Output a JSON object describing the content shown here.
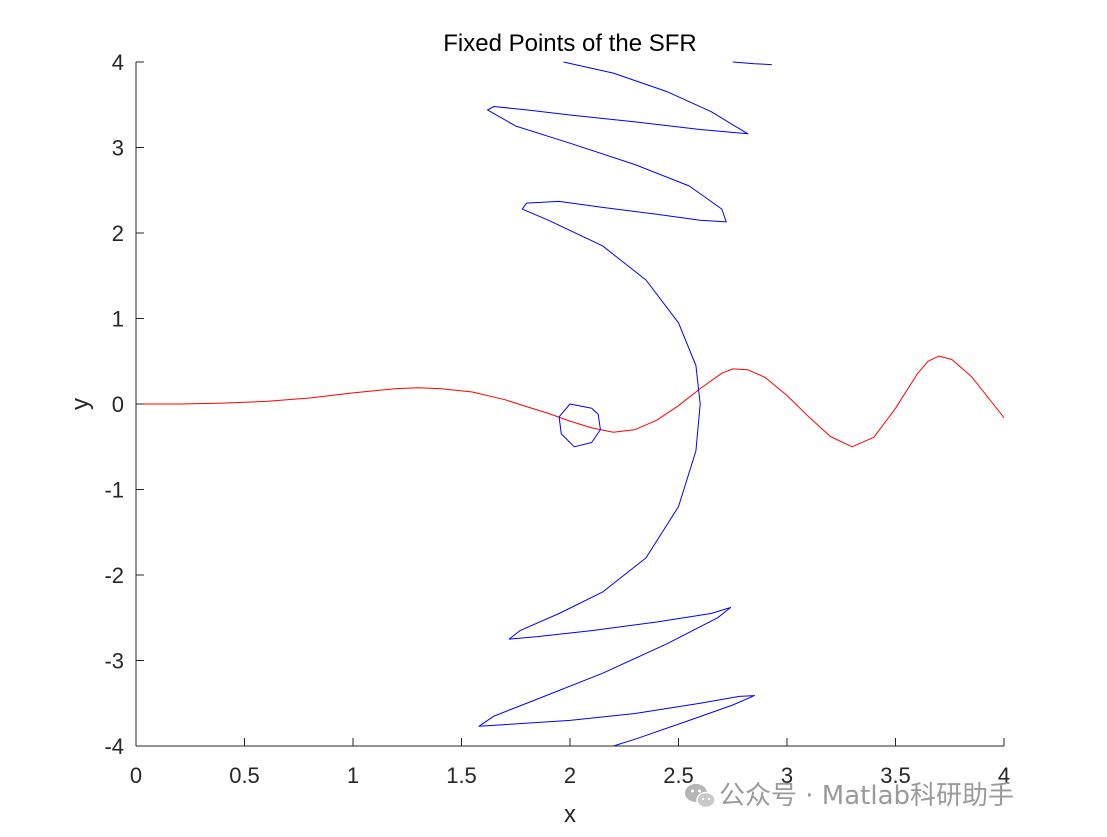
{
  "chart_data": {
    "type": "line",
    "title": "Fixed Points of the SFR",
    "xlabel": "x",
    "ylabel": "y",
    "xlim": [
      0,
      4
    ],
    "ylim": [
      -4,
      4
    ],
    "xticks": [
      "0",
      "0.5",
      "1",
      "1.5",
      "2",
      "2.5",
      "3",
      "3.5",
      "4"
    ],
    "yticks": [
      "-4",
      "-3",
      "-2",
      "-1",
      "0",
      "1",
      "2",
      "3",
      "4"
    ],
    "grid": false,
    "box": false,
    "series": [
      {
        "color": "#ff0000",
        "points": [
          [
            0.0,
            0.0
          ],
          [
            0.2,
            0.0
          ],
          [
            0.4,
            0.01
          ],
          [
            0.6,
            0.03
          ],
          [
            0.8,
            0.07
          ],
          [
            1.0,
            0.13
          ],
          [
            1.2,
            0.18
          ],
          [
            1.3,
            0.19
          ],
          [
            1.4,
            0.18
          ],
          [
            1.55,
            0.14
          ],
          [
            1.7,
            0.05
          ],
          [
            1.8,
            -0.03
          ],
          [
            1.9,
            -0.11
          ],
          [
            2.0,
            -0.2
          ],
          [
            2.1,
            -0.28
          ],
          [
            2.2,
            -0.33
          ],
          [
            2.3,
            -0.3
          ],
          [
            2.4,
            -0.19
          ],
          [
            2.5,
            -0.02
          ],
          [
            2.6,
            0.18
          ],
          [
            2.7,
            0.36
          ],
          [
            2.75,
            0.41
          ],
          [
            2.82,
            0.4
          ],
          [
            2.9,
            0.31
          ],
          [
            3.0,
            0.1
          ],
          [
            3.1,
            -0.15
          ],
          [
            3.2,
            -0.38
          ],
          [
            3.3,
            -0.5
          ],
          [
            3.4,
            -0.39
          ],
          [
            3.5,
            -0.05
          ],
          [
            3.6,
            0.35
          ],
          [
            3.65,
            0.5
          ],
          [
            3.7,
            0.56
          ],
          [
            3.76,
            0.52
          ],
          [
            3.85,
            0.32
          ],
          [
            3.95,
            0.0
          ],
          [
            4.0,
            -0.16
          ]
        ]
      },
      {
        "color": "#0000ff",
        "points": [
          [
            2.93,
            3.97
          ],
          [
            2.85,
            3.98
          ],
          [
            2.75,
            4.0
          ]
        ]
      },
      {
        "color": "#0000ff",
        "points": [
          [
            1.97,
            4.0
          ],
          [
            2.2,
            3.87
          ],
          [
            2.45,
            3.65
          ],
          [
            2.65,
            3.42
          ],
          [
            2.78,
            3.22
          ],
          [
            2.82,
            3.16
          ],
          [
            2.6,
            3.21
          ],
          [
            2.3,
            3.3
          ],
          [
            2.0,
            3.38
          ],
          [
            1.8,
            3.44
          ],
          [
            1.65,
            3.48
          ],
          [
            1.62,
            3.44
          ],
          [
            1.75,
            3.25
          ],
          [
            2.0,
            3.05
          ],
          [
            2.3,
            2.8
          ],
          [
            2.55,
            2.55
          ],
          [
            2.7,
            2.28
          ],
          [
            2.72,
            2.13
          ],
          [
            2.6,
            2.15
          ],
          [
            2.4,
            2.22
          ],
          [
            2.15,
            2.3
          ],
          [
            1.95,
            2.37
          ],
          [
            1.8,
            2.35
          ],
          [
            1.78,
            2.28
          ],
          [
            1.9,
            2.15
          ],
          [
            2.15,
            1.85
          ],
          [
            2.35,
            1.45
          ],
          [
            2.5,
            0.95
          ],
          [
            2.58,
            0.45
          ],
          [
            2.6,
            0.0
          ],
          [
            2.58,
            -0.55
          ],
          [
            2.5,
            -1.2
          ],
          [
            2.35,
            -1.8
          ],
          [
            2.15,
            -2.2
          ],
          [
            1.95,
            -2.45
          ],
          [
            1.77,
            -2.65
          ],
          [
            1.72,
            -2.75
          ],
          [
            1.85,
            -2.72
          ],
          [
            2.1,
            -2.65
          ],
          [
            2.4,
            -2.55
          ],
          [
            2.65,
            -2.45
          ],
          [
            2.74,
            -2.38
          ],
          [
            2.68,
            -2.5
          ],
          [
            2.45,
            -2.8
          ],
          [
            2.15,
            -3.15
          ],
          [
            1.85,
            -3.45
          ],
          [
            1.65,
            -3.65
          ],
          [
            1.58,
            -3.77
          ],
          [
            1.7,
            -3.75
          ],
          [
            2.0,
            -3.7
          ],
          [
            2.3,
            -3.62
          ],
          [
            2.6,
            -3.5
          ],
          [
            2.78,
            -3.42
          ],
          [
            2.85,
            -3.41
          ],
          [
            2.75,
            -3.52
          ],
          [
            2.55,
            -3.7
          ],
          [
            2.3,
            -3.92
          ],
          [
            2.2,
            -4.0
          ]
        ]
      },
      {
        "color": "#0000ff",
        "points": [
          [
            2.1,
            -0.05
          ],
          [
            2.0,
            0.0
          ],
          [
            1.95,
            -0.15
          ],
          [
            1.96,
            -0.35
          ],
          [
            2.02,
            -0.5
          ],
          [
            2.1,
            -0.45
          ],
          [
            2.14,
            -0.3
          ],
          [
            2.13,
            -0.12
          ],
          [
            2.1,
            -0.05
          ]
        ]
      }
    ]
  },
  "watermark": {
    "icon": "wechat-icon",
    "text": "公众号 · Matlab科研助手"
  }
}
